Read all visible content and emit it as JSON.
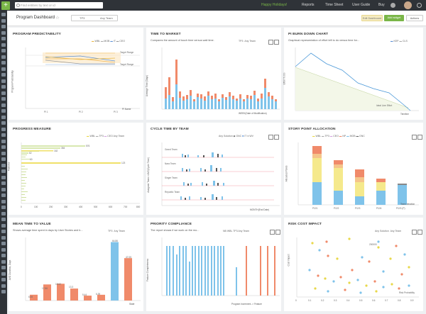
{
  "topbar": {
    "search_placeholder": "Find entities by text or id",
    "holiday": "Happy Holidays!",
    "reports": "Reports",
    "timesheet": "Time Sheet",
    "userguide": "User Guide",
    "buy": "Buy"
  },
  "dashboard": {
    "title": "Program Dashboard",
    "filter_left": "TP3",
    "filter_right": "Any Team",
    "edit_label": "Edit Dashboard",
    "add_label": "Add widget",
    "actions_label": "Actions"
  },
  "p1": {
    "title": "Program Predictability",
    "legend": [
      "WBL",
      "MOB",
      "IT",
      "CEO"
    ],
    "target_upper": "Target Range",
    "target_lower": "Target Range",
    "yaxis": "Program Predictability",
    "xticks": [
      "PI 1",
      "PI 2",
      "PI 3"
    ],
    "xaxis": "PI Name"
  },
  "p2": {
    "title": "Time To Market",
    "desc": "Compares the amount of touch time versus wait time.",
    "legend": [
      "TP3",
      "Any Team"
    ],
    "yaxis": "Average Time (Days)",
    "xaxis": "WEEK(Date of Modification)"
  },
  "p3": {
    "title": "PI Burn Down Chart",
    "desc": "Graphical representation of effort left to do versus time for...",
    "legend": [
      "KEP",
      "CLS"
    ],
    "yaxis": "Effort To Do",
    "xaxis": "Timeline",
    "ideal": "Ideal Line Effort"
  },
  "p4": {
    "title": "Progress Measure",
    "legend": [
      "WBL",
      "TP3",
      "CEO",
      "Any Team"
    ],
    "yaxis": "Features",
    "xticks": [
      "0",
      "100",
      "200",
      "300",
      "400",
      "500",
      "600",
      "700",
      "800"
    ],
    "labels": [
      "576",
      "354",
      "162",
      "62",
      "123",
      "60"
    ]
  },
  "p5": {
    "title": "Cycle Time By Team",
    "legend": [
      "Any Solution",
      "GNC",
      "IT",
      "WV"
    ],
    "teams": [
      "Grand Team",
      "Nara Team",
      "Singer Team",
      "Republic Team"
    ],
    "yaxis": "Assigned Team > AVG(Cycle Time)",
    "xaxis": "MONTH(End Date)"
  },
  "p6": {
    "title": "Story Point Allocation",
    "legend": [
      "WBL",
      "TP3",
      "CEO",
      "NP",
      "MOB",
      "GNC"
    ],
    "yaxis": "Allocated Points",
    "xticks": [
      "P/2/1",
      "P/2/2",
      "P/2/3",
      "P/2/4",
      "P/2/3 (P)"
    ],
    "xaxis": "Team Iteration"
  },
  "p7": {
    "title": "Mean Time To Value",
    "desc": "Shows average time spent in days by User Stories and b...",
    "legend": [
      "TP3",
      "Any Team"
    ],
    "yaxis": "AVG Duration, Days",
    "xaxis": "State",
    "values": [
      "6.45",
      "17.86",
      "18.62",
      "13.3",
      "5.44",
      "6.39",
      "64.86",
      "47.05"
    ]
  },
  "p8": {
    "title": "Priority Compliance",
    "desc": "The report shows if we work on the mo...",
    "legend": [
      "NB",
      "WBL",
      "TP3",
      "Any Team"
    ],
    "yaxis": "Feature Completeness",
    "xaxis": "Program Increment -> Feature"
  },
  "p9": {
    "title": "Risk Cost Impact",
    "legend": [
      "Any Solution",
      "Any Team"
    ],
    "yaxis": "Cost Impact",
    "xaxis": "Risk Probability",
    "label_center": "200000",
    "label_right": "Risk Probability",
    "xticks": [
      "0",
      "0.1",
      "0.2",
      "0.3",
      "0.4",
      "0.5",
      "0.6",
      "0.7",
      "0.8",
      "0.9"
    ]
  },
  "chart_data": [
    {
      "type": "bar",
      "title": "Mean Time To Value",
      "values": [
        6.45,
        17.86,
        18.62,
        13.3,
        5.44,
        6.39,
        64.86,
        47.05
      ],
      "ylabel": "AVG Duration, Days",
      "xlabel": "State"
    }
  ],
  "colors": {
    "accent": "#7ab648",
    "orange": "#f08a6a",
    "blue": "#7fc3ea",
    "yellow": "#f5e98c"
  }
}
